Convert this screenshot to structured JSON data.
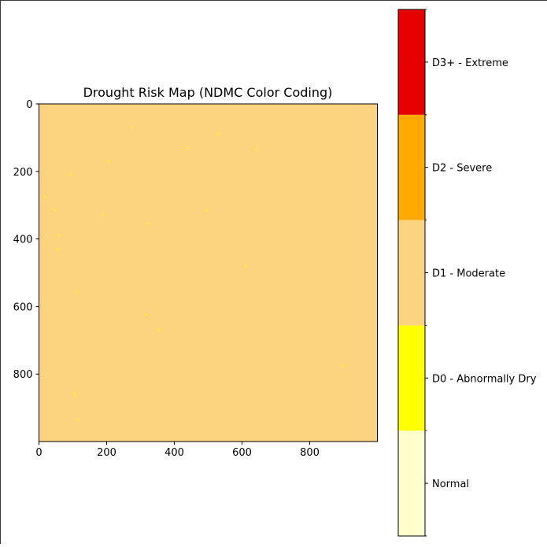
{
  "chart_data": {
    "type": "heatmap",
    "title": "Drought Risk Map (NDMC Color Coding)",
    "xlabel": "",
    "ylabel": "",
    "xlim": [
      0,
      1000
    ],
    "ylim": [
      1000,
      0
    ],
    "x_ticks": [
      0,
      200,
      400,
      600,
      800
    ],
    "y_ticks": [
      0,
      200,
      400,
      600,
      800
    ],
    "dominant_class": "D1 - Moderate",
    "d0_cells": [
      {
        "x": 275,
        "y": 70
      },
      {
        "x": 530,
        "y": 88
      },
      {
        "x": 440,
        "y": 130
      },
      {
        "x": 640,
        "y": 135
      },
      {
        "x": 205,
        "y": 170
      },
      {
        "x": 95,
        "y": 210
      },
      {
        "x": 18,
        "y": 275
      },
      {
        "x": 45,
        "y": 315
      },
      {
        "x": 495,
        "y": 315
      },
      {
        "x": 190,
        "y": 330
      },
      {
        "x": 325,
        "y": 355
      },
      {
        "x": 60,
        "y": 390
      },
      {
        "x": 55,
        "y": 430
      },
      {
        "x": 610,
        "y": 480
      },
      {
        "x": 110,
        "y": 555
      },
      {
        "x": 315,
        "y": 625
      },
      {
        "x": 355,
        "y": 670
      },
      {
        "x": 900,
        "y": 775
      },
      {
        "x": 105,
        "y": 855
      },
      {
        "x": 108,
        "y": 865
      },
      {
        "x": 115,
        "y": 935
      }
    ],
    "colorbar": {
      "classes": [
        {
          "label": "Normal",
          "color": "#ffffcc"
        },
        {
          "label": "D0 - Abnormally Dry",
          "color": "#ffff00"
        },
        {
          "label": "D1 - Moderate",
          "color": "#fcd37f"
        },
        {
          "label": "D2 - Severe",
          "color": "#ffaa00"
        },
        {
          "label": "D3+ - Extreme",
          "color": "#e60000"
        }
      ]
    }
  }
}
